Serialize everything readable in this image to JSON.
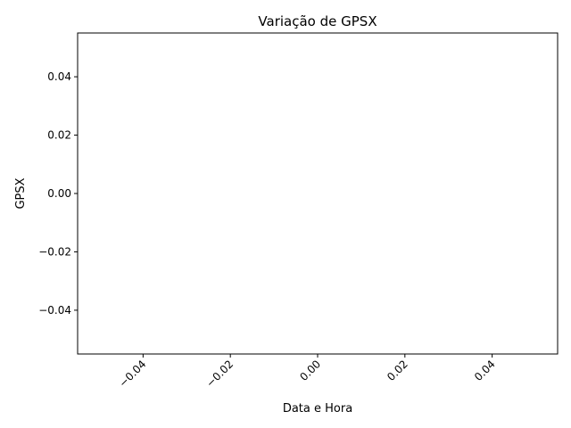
{
  "chart_data": {
    "type": "line",
    "title": "Variação de GPSX",
    "xlabel": "Data e Hora",
    "ylabel": "GPSX",
    "xlim": [
      -0.055,
      0.055
    ],
    "ylim": [
      -0.055,
      0.055
    ],
    "x_ticks": [
      {
        "value": -0.04,
        "label": "−0.04"
      },
      {
        "value": -0.02,
        "label": "−0.02"
      },
      {
        "value": 0.0,
        "label": "0.00"
      },
      {
        "value": 0.02,
        "label": "0.02"
      },
      {
        "value": 0.04,
        "label": "0.04"
      }
    ],
    "y_ticks": [
      {
        "value": 0.04,
        "label": "0.04"
      },
      {
        "value": 0.02,
        "label": "0.02"
      },
      {
        "value": 0.0,
        "label": "0.00"
      },
      {
        "value": -0.02,
        "label": "−0.02"
      },
      {
        "value": -0.04,
        "label": "−0.04"
      }
    ],
    "x_tick_rotation": 45,
    "grid": false,
    "series": [
      {
        "x": [],
        "y": []
      }
    ]
  }
}
